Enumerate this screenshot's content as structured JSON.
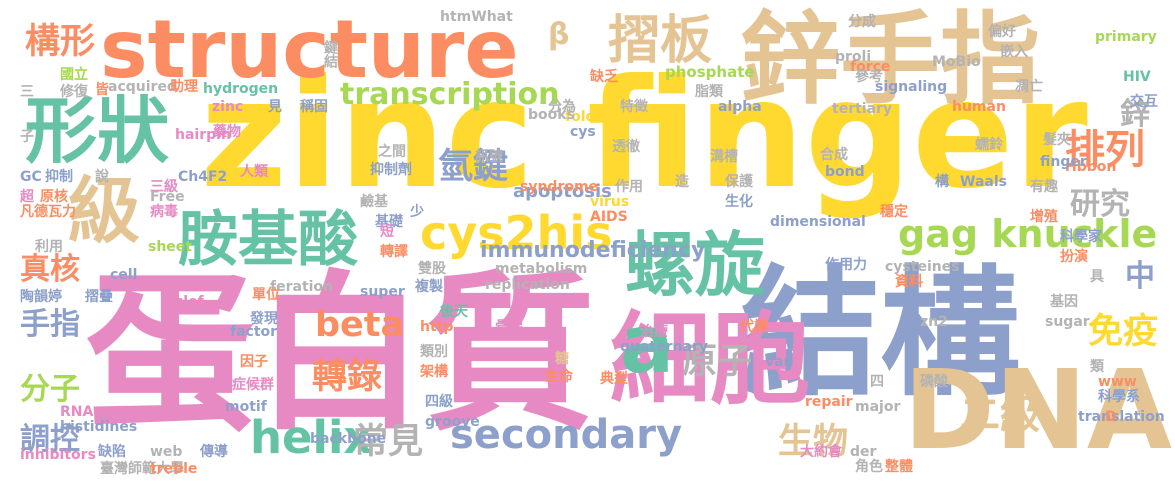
{
  "palette": {
    "pink": "#e78ac3",
    "blue": "#8da0cb",
    "orange": "#fc8d62",
    "yellow": "#ffd92f",
    "tan": "#e5c494",
    "green": "#66c2a5",
    "lime": "#a6d854",
    "gray": "#b3b3b3"
  },
  "words": [
    {
      "text": "zinc finger",
      "color": "#ffd92f"
    },
    {
      "text": "蛋白質",
      "color": "#e78ac3"
    },
    {
      "text": "結構",
      "color": "#8da0cb"
    },
    {
      "text": "structure",
      "color": "#fc8d62"
    },
    {
      "text": "鋅手指",
      "color": "#e5c494"
    },
    {
      "text": "DNA",
      "color": "#e5c494"
    },
    {
      "text": "細胞",
      "color": "#e78ac3"
    },
    {
      "text": "螺旋",
      "color": "#66c2a5"
    },
    {
      "text": "形狀",
      "color": "#66c2a5"
    },
    {
      "text": "級",
      "color": "#e5c494"
    },
    {
      "text": "胺基酸",
      "color": "#66c2a5"
    },
    {
      "text": "cys2his",
      "color": "#ffd92f"
    },
    {
      "text": "摺板",
      "color": "#e5c494"
    },
    {
      "text": "gag knuckle",
      "color": "#a6d854"
    },
    {
      "text": "transcription",
      "color": "#a6d854"
    },
    {
      "text": "a",
      "color": "#66c2a5"
    },
    {
      "text": "構形",
      "color": "#fc8d62"
    },
    {
      "text": "β",
      "color": "#e5c494"
    },
    {
      "text": "氫鍵",
      "color": "#8da0cb"
    },
    {
      "text": "排列",
      "color": "#fc8d62"
    },
    {
      "text": "研究",
      "color": "#b3b3b3"
    },
    {
      "text": "鋅",
      "color": "#b3b3b3"
    },
    {
      "text": "中",
      "color": "#8da0cb"
    },
    {
      "text": "helix",
      "color": "#66c2a5"
    },
    {
      "text": "secondary",
      "color": "#8da0cb"
    },
    {
      "text": "beta",
      "color": "#fc8d62"
    },
    {
      "text": "轉錄",
      "color": "#fc8d62"
    },
    {
      "text": "二級",
      "color": "#e5c494"
    },
    {
      "text": "原子",
      "color": "#b3b3b3"
    },
    {
      "text": "免疫",
      "color": "#ffd92f"
    },
    {
      "text": "分子",
      "color": "#a6d854"
    },
    {
      "text": "手指",
      "color": "#8da0cb"
    },
    {
      "text": "真核",
      "color": "#fc8d62"
    },
    {
      "text": "調控",
      "color": "#8da0cb"
    },
    {
      "text": "常見",
      "color": "#b3b3b3"
    },
    {
      "text": "生物",
      "color": "#e5c494"
    },
    {
      "text": "immunodeficiency",
      "color": "#8da0cb"
    },
    {
      "text": "apoptosis",
      "color": "#8da0cb"
    },
    {
      "text": "folding",
      "color": "#ffd92f"
    },
    {
      "text": "phosphate",
      "color": "#a6d854"
    },
    {
      "text": "hydrogen",
      "color": "#66c2a5"
    },
    {
      "text": "signaling",
      "color": "#8da0cb"
    },
    {
      "text": "proli",
      "color": "#b3b3b3"
    },
    {
      "text": "force",
      "color": "#fc8d62"
    },
    {
      "text": "MoBio",
      "color": "#b3b3b3"
    },
    {
      "text": "分成",
      "color": "#b3b3b3"
    },
    {
      "text": "primary",
      "color": "#a6d854"
    },
    {
      "text": "HIV",
      "color": "#66c2a5"
    },
    {
      "text": "偏好",
      "color": "#b3b3b3"
    },
    {
      "text": "嵌入",
      "color": "#b3b3b3"
    },
    {
      "text": "凋亡",
      "color": "#b3b3b3"
    },
    {
      "text": "交互",
      "color": "#8da0cb"
    },
    {
      "text": "鍵結",
      "color": "#b3b3b3"
    },
    {
      "text": "htmWhat",
      "color": "#b3b3b3"
    },
    {
      "text": "國立",
      "color": "#a6d854"
    },
    {
      "text": "修復",
      "color": "#b3b3b3"
    },
    {
      "text": "皆",
      "color": "#fc8d62"
    },
    {
      "text": "acquired",
      "color": "#b3b3b3"
    },
    {
      "text": "助理",
      "color": "#fc8d62"
    },
    {
      "text": "zinc",
      "color": "#e78ac3"
    },
    {
      "text": "見",
      "color": "#8da0cb"
    },
    {
      "text": "稱固",
      "color": "#8da0cb"
    },
    {
      "text": "alpha",
      "color": "#8da0cb"
    },
    {
      "text": "tertiary",
      "color": "#b3b3b3"
    },
    {
      "text": "human",
      "color": "#fc8d62"
    },
    {
      "text": "hairpin",
      "color": "#e78ac3"
    },
    {
      "text": "cys",
      "color": "#8da0cb"
    },
    {
      "text": "books",
      "color": "#b3b3b3"
    },
    {
      "text": "分為",
      "color": "#b3b3b3"
    },
    {
      "text": "缺乏",
      "color": "#fc8d62"
    },
    {
      "text": "特徵",
      "color": "#b3b3b3"
    },
    {
      "text": "脂類",
      "color": "#b3b3b3"
    },
    {
      "text": "參考",
      "color": "#b3b3b3"
    },
    {
      "text": "藥物",
      "color": "#e78ac3"
    },
    {
      "text": "三",
      "color": "#b3b3b3"
    },
    {
      "text": "髮夾",
      "color": "#b3b3b3"
    },
    {
      "text": "蠕鈴",
      "color": "#b3b3b3"
    },
    {
      "text": "ribbon",
      "color": "#fc8d62"
    },
    {
      "text": "finger",
      "color": "#8da0cb"
    },
    {
      "text": "bond",
      "color": "#8da0cb"
    },
    {
      "text": "合成",
      "color": "#b3b3b3"
    },
    {
      "text": "溝槽",
      "color": "#b3b3b3"
    },
    {
      "text": "透徹",
      "color": "#b3b3b3"
    },
    {
      "text": "之間",
      "color": "#b3b3b3"
    },
    {
      "text": "抑制劑",
      "color": "#8da0cb"
    },
    {
      "text": "人類",
      "color": "#e78ac3"
    },
    {
      "text": "Ch4F2",
      "color": "#8da0cb"
    },
    {
      "text": "三級",
      "color": "#e78ac3"
    },
    {
      "text": "原核",
      "color": "#fc8d62"
    },
    {
      "text": "抑制",
      "color": "#8da0cb"
    },
    {
      "text": "GC",
      "color": "#8da0cb"
    },
    {
      "text": "超",
      "color": "#e78ac3"
    },
    {
      "text": "凡德瓦力",
      "color": "#fc8d62"
    },
    {
      "text": "病毒",
      "color": "#e78ac3"
    },
    {
      "text": "Free",
      "color": "#b3b3b3"
    },
    {
      "text": "syndrome",
      "color": "#fc8d62"
    },
    {
      "text": "virus",
      "color": "#ffd92f"
    },
    {
      "text": "AIDS",
      "color": "#fc8d62"
    },
    {
      "text": "作用",
      "color": "#b3b3b3"
    },
    {
      "text": "造",
      "color": "#b3b3b3"
    },
    {
      "text": "保護",
      "color": "#b3b3b3"
    },
    {
      "text": "生化",
      "color": "#8da0cb"
    },
    {
      "text": "構",
      "color": "#8da0cb"
    },
    {
      "text": "Waals",
      "color": "#8da0cb"
    },
    {
      "text": "有趣",
      "color": "#b3b3b3"
    },
    {
      "text": "穩定",
      "color": "#fc8d62"
    },
    {
      "text": "增殖",
      "color": "#fc8d62"
    },
    {
      "text": "科學家",
      "color": "#8da0cb"
    },
    {
      "text": "扮演",
      "color": "#fc8d62"
    },
    {
      "text": "具",
      "color": "#b3b3b3"
    },
    {
      "text": "資料",
      "color": "#fc8d62"
    },
    {
      "text": "基因",
      "color": "#b3b3b3"
    },
    {
      "text": "sugar",
      "color": "#b3b3b3"
    },
    {
      "text": "cysteines",
      "color": "#b3b3b3"
    },
    {
      "text": "作用力",
      "color": "#8da0cb"
    },
    {
      "text": "dimensional",
      "color": "#8da0cb"
    },
    {
      "text": "基礎",
      "color": "#8da0cb"
    },
    {
      "text": "鹼基",
      "color": "#b3b3b3"
    },
    {
      "text": "少",
      "color": "#8da0cb"
    },
    {
      "text": "短",
      "color": "#e78ac3"
    },
    {
      "text": "轉譯",
      "color": "#fc8d62"
    },
    {
      "text": "雙股",
      "color": "#b3b3b3"
    },
    {
      "text": "metabolism",
      "color": "#b3b3b3"
    },
    {
      "text": "feration",
      "color": "#b3b3b3"
    },
    {
      "text": "單位",
      "color": "#fc8d62"
    },
    {
      "text": "複製",
      "color": "#8da0cb"
    },
    {
      "text": "super",
      "color": "#8da0cb"
    },
    {
      "text": "後天",
      "color": "#66c2a5"
    },
    {
      "text": "replication",
      "color": "#b3b3b3"
    },
    {
      "text": "clef",
      "color": "#e78ac3"
    },
    {
      "text": "發現",
      "color": "#8da0cb"
    },
    {
      "text": "factor",
      "color": "#8da0cb"
    },
    {
      "text": "http",
      "color": "#fc8d62"
    },
    {
      "text": "骨架",
      "color": "#e78ac3"
    },
    {
      "text": "治療",
      "color": "#e78ac3"
    },
    {
      "text": "代謝",
      "color": "#fc8d62"
    },
    {
      "text": "zn2",
      "color": "#b3b3b3"
    },
    {
      "text": "quaternary",
      "color": "#8da0cb"
    },
    {
      "text": "類別",
      "color": "#b3b3b3"
    },
    {
      "text": "因子",
      "color": "#fc8d62"
    },
    {
      "text": "症候群",
      "color": "#e78ac3"
    },
    {
      "text": "架構",
      "color": "#fc8d62"
    },
    {
      "text": "糖",
      "color": "#e5c494"
    },
    {
      "text": "生命",
      "color": "#fc8d62"
    },
    {
      "text": "典型",
      "color": "#fc8d62"
    },
    {
      "text": "van",
      "color": "#8da0cb"
    },
    {
      "text": "四",
      "color": "#b3b3b3"
    },
    {
      "text": "磷酸",
      "color": "#b3b3b3"
    },
    {
      "text": "類",
      "color": "#b3b3b3"
    },
    {
      "text": "www",
      "color": "#fc8d62"
    },
    {
      "text": "科學系",
      "color": "#8da0cb"
    },
    {
      "text": "repair",
      "color": "#fc8d62"
    },
    {
      "text": "major",
      "color": "#b3b3b3"
    },
    {
      "text": "motif",
      "color": "#8da0cb"
    },
    {
      "text": "四級",
      "color": "#8da0cb"
    },
    {
      "text": "RNA",
      "color": "#e78ac3"
    },
    {
      "text": "histidines",
      "color": "#8da0cb"
    },
    {
      "text": "groove",
      "color": "#8da0cb"
    },
    {
      "text": "web",
      "color": "#b3b3b3"
    },
    {
      "text": "backbone",
      "color": "#8da0cb"
    },
    {
      "text": "大約會",
      "color": "#e78ac3"
    },
    {
      "text": "der",
      "color": "#b3b3b3"
    },
    {
      "text": "角色",
      "color": "#b3b3b3"
    },
    {
      "text": "整體",
      "color": "#fc8d62"
    },
    {
      "text": "translation",
      "color": "#8da0cb"
    },
    {
      "text": "D",
      "color": "#fc8d62"
    },
    {
      "text": "缺陷",
      "color": "#8da0cb"
    },
    {
      "text": "傳導",
      "color": "#8da0cb"
    },
    {
      "text": "臺灣師範大學",
      "color": "#b3b3b3"
    },
    {
      "text": "treble",
      "color": "#fc8d62"
    },
    {
      "text": "inhibitors",
      "color": "#e78ac3"
    },
    {
      "text": "陶韻婷",
      "color": "#8da0cb"
    },
    {
      "text": "摺疊",
      "color": "#8da0cb"
    },
    {
      "text": "cell",
      "color": "#8da0cb"
    },
    {
      "text": "sheet",
      "color": "#a6d854"
    },
    {
      "text": "利用",
      "color": "#b3b3b3"
    },
    {
      "text": "訊號",
      "color": "#b3b3b3"
    },
    {
      "text": "說",
      "color": "#b3b3b3"
    },
    {
      "text": "子",
      "color": "#b3b3b3"
    },
    {
      "text": "二",
      "color": "#e5c494"
    }
  ]
}
